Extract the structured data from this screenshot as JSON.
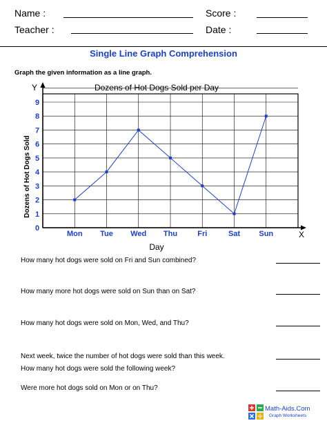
{
  "header": {
    "name_label": "Name :",
    "teacher_label": "Teacher :",
    "score_label": "Score :",
    "date_label": "Date :"
  },
  "worksheet": {
    "title": "Single Line Graph Comprehension",
    "instruction": "Graph the given information as a line graph."
  },
  "chart_data": {
    "type": "line",
    "title": "Dozens of Hot Dogs Sold per Day",
    "xlabel": "Day",
    "ylabel": "Dozens of Hot Dogs Sold",
    "x_axis_letter": "X",
    "y_axis_letter": "Y",
    "categories": [
      "Mon",
      "Tue",
      "Wed",
      "Thu",
      "Fri",
      "Sat",
      "Sun"
    ],
    "values": [
      2,
      4,
      7,
      5,
      3,
      1,
      8
    ],
    "ylim": [
      0,
      9
    ],
    "yticks": [
      0,
      1,
      2,
      3,
      4,
      5,
      6,
      7,
      8,
      9
    ],
    "grid": true,
    "colors": {
      "line": "#1a3fd0",
      "label": "#1a3fd0"
    }
  },
  "questions": [
    "How many hot dogs were sold on Fri and Sun combined?",
    "How many more hot dogs were sold on Sun than on Sat?",
    "How many hot dogs were sold on Mon, Wed, and Thu?",
    "Next week, twice the number of hot dogs were sold than this week.",
    "How many hot dogs were sold the following week?",
    "Were more hot dogs sold on Mon or on Thu?"
  ],
  "branding": {
    "logo_name": "Math-Aids.Com",
    "logo_sub": "Graph Worksheets",
    "logo_icon": "calculator-icon"
  }
}
